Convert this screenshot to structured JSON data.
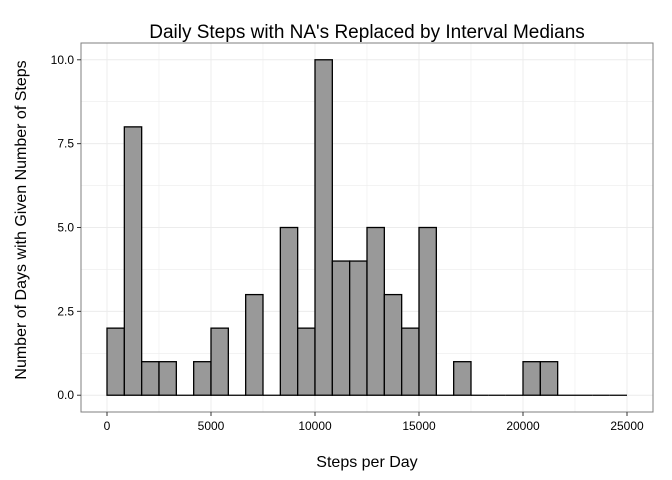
{
  "chart_data": {
    "type": "bar",
    "title": "Daily Steps with NA's Replaced by Interval Medians",
    "xlabel": "Steps per Day",
    "ylabel": "Number of Days with Given Number of Steps",
    "xlim": [
      -1250,
      26250
    ],
    "ylim": [
      -0.5,
      10.5
    ],
    "x_ticks": [
      0,
      5000,
      10000,
      15000,
      20000,
      25000
    ],
    "x_tick_labels": [
      "0",
      "5000",
      "10000",
      "15000",
      "20000",
      "25000"
    ],
    "y_ticks": [
      0,
      2.5,
      5,
      7.5,
      10
    ],
    "y_tick_labels": [
      "0.0",
      "2.5",
      "5.0",
      "7.5",
      "10.0"
    ],
    "bin_width": 833.33,
    "bin_start": 0,
    "values": [
      2,
      8,
      1,
      1,
      0,
      1,
      2,
      0,
      3,
      0,
      5,
      2,
      10,
      4,
      4,
      5,
      3,
      2,
      5,
      0,
      1,
      0,
      0,
      0,
      1,
      1,
      0,
      0,
      0,
      0
    ],
    "grid": true,
    "bar_fill": "#999999",
    "bar_stroke": "#000000",
    "panel_border": "#7f7f7f",
    "grid_color": "#ececec"
  }
}
